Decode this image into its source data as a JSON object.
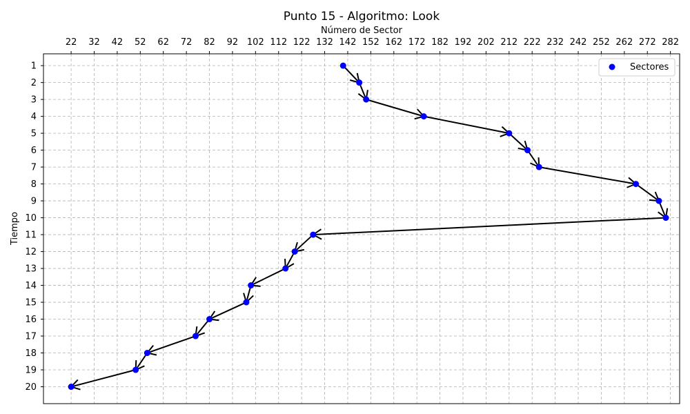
{
  "chart_data": {
    "type": "scatter",
    "title": "Punto 15 - Algoritmo: Look",
    "xlabel": "Número de Sector",
    "ylabel": "Tiempo",
    "x_axis_position": "top",
    "y_axis_inverted": true,
    "xlim": [
      10,
      286
    ],
    "ylim": [
      21,
      0.3
    ],
    "x_ticks": [
      22,
      32,
      42,
      52,
      62,
      72,
      82,
      92,
      102,
      112,
      122,
      132,
      142,
      152,
      162,
      172,
      182,
      192,
      202,
      212,
      222,
      232,
      242,
      252,
      262,
      272,
      282
    ],
    "y_ticks": [
      1,
      2,
      3,
      4,
      5,
      6,
      7,
      8,
      9,
      10,
      11,
      12,
      13,
      14,
      15,
      16,
      17,
      18,
      19,
      20
    ],
    "grid": true,
    "legend": {
      "position": "top-right",
      "entries": [
        "Sectores"
      ]
    },
    "series": [
      {
        "name": "Sectores",
        "color": "#0000ff",
        "x": [
          140,
          147,
          150,
          175,
          212,
          220,
          225,
          267,
          277,
          280,
          127,
          119,
          115,
          100,
          98,
          82,
          76,
          55,
          50,
          22
        ],
        "y": [
          1,
          2,
          3,
          4,
          5,
          6,
          7,
          8,
          9,
          10,
          11,
          12,
          13,
          14,
          15,
          16,
          17,
          18,
          19,
          20
        ]
      }
    ],
    "path_color": "#000000",
    "arrows": true
  }
}
